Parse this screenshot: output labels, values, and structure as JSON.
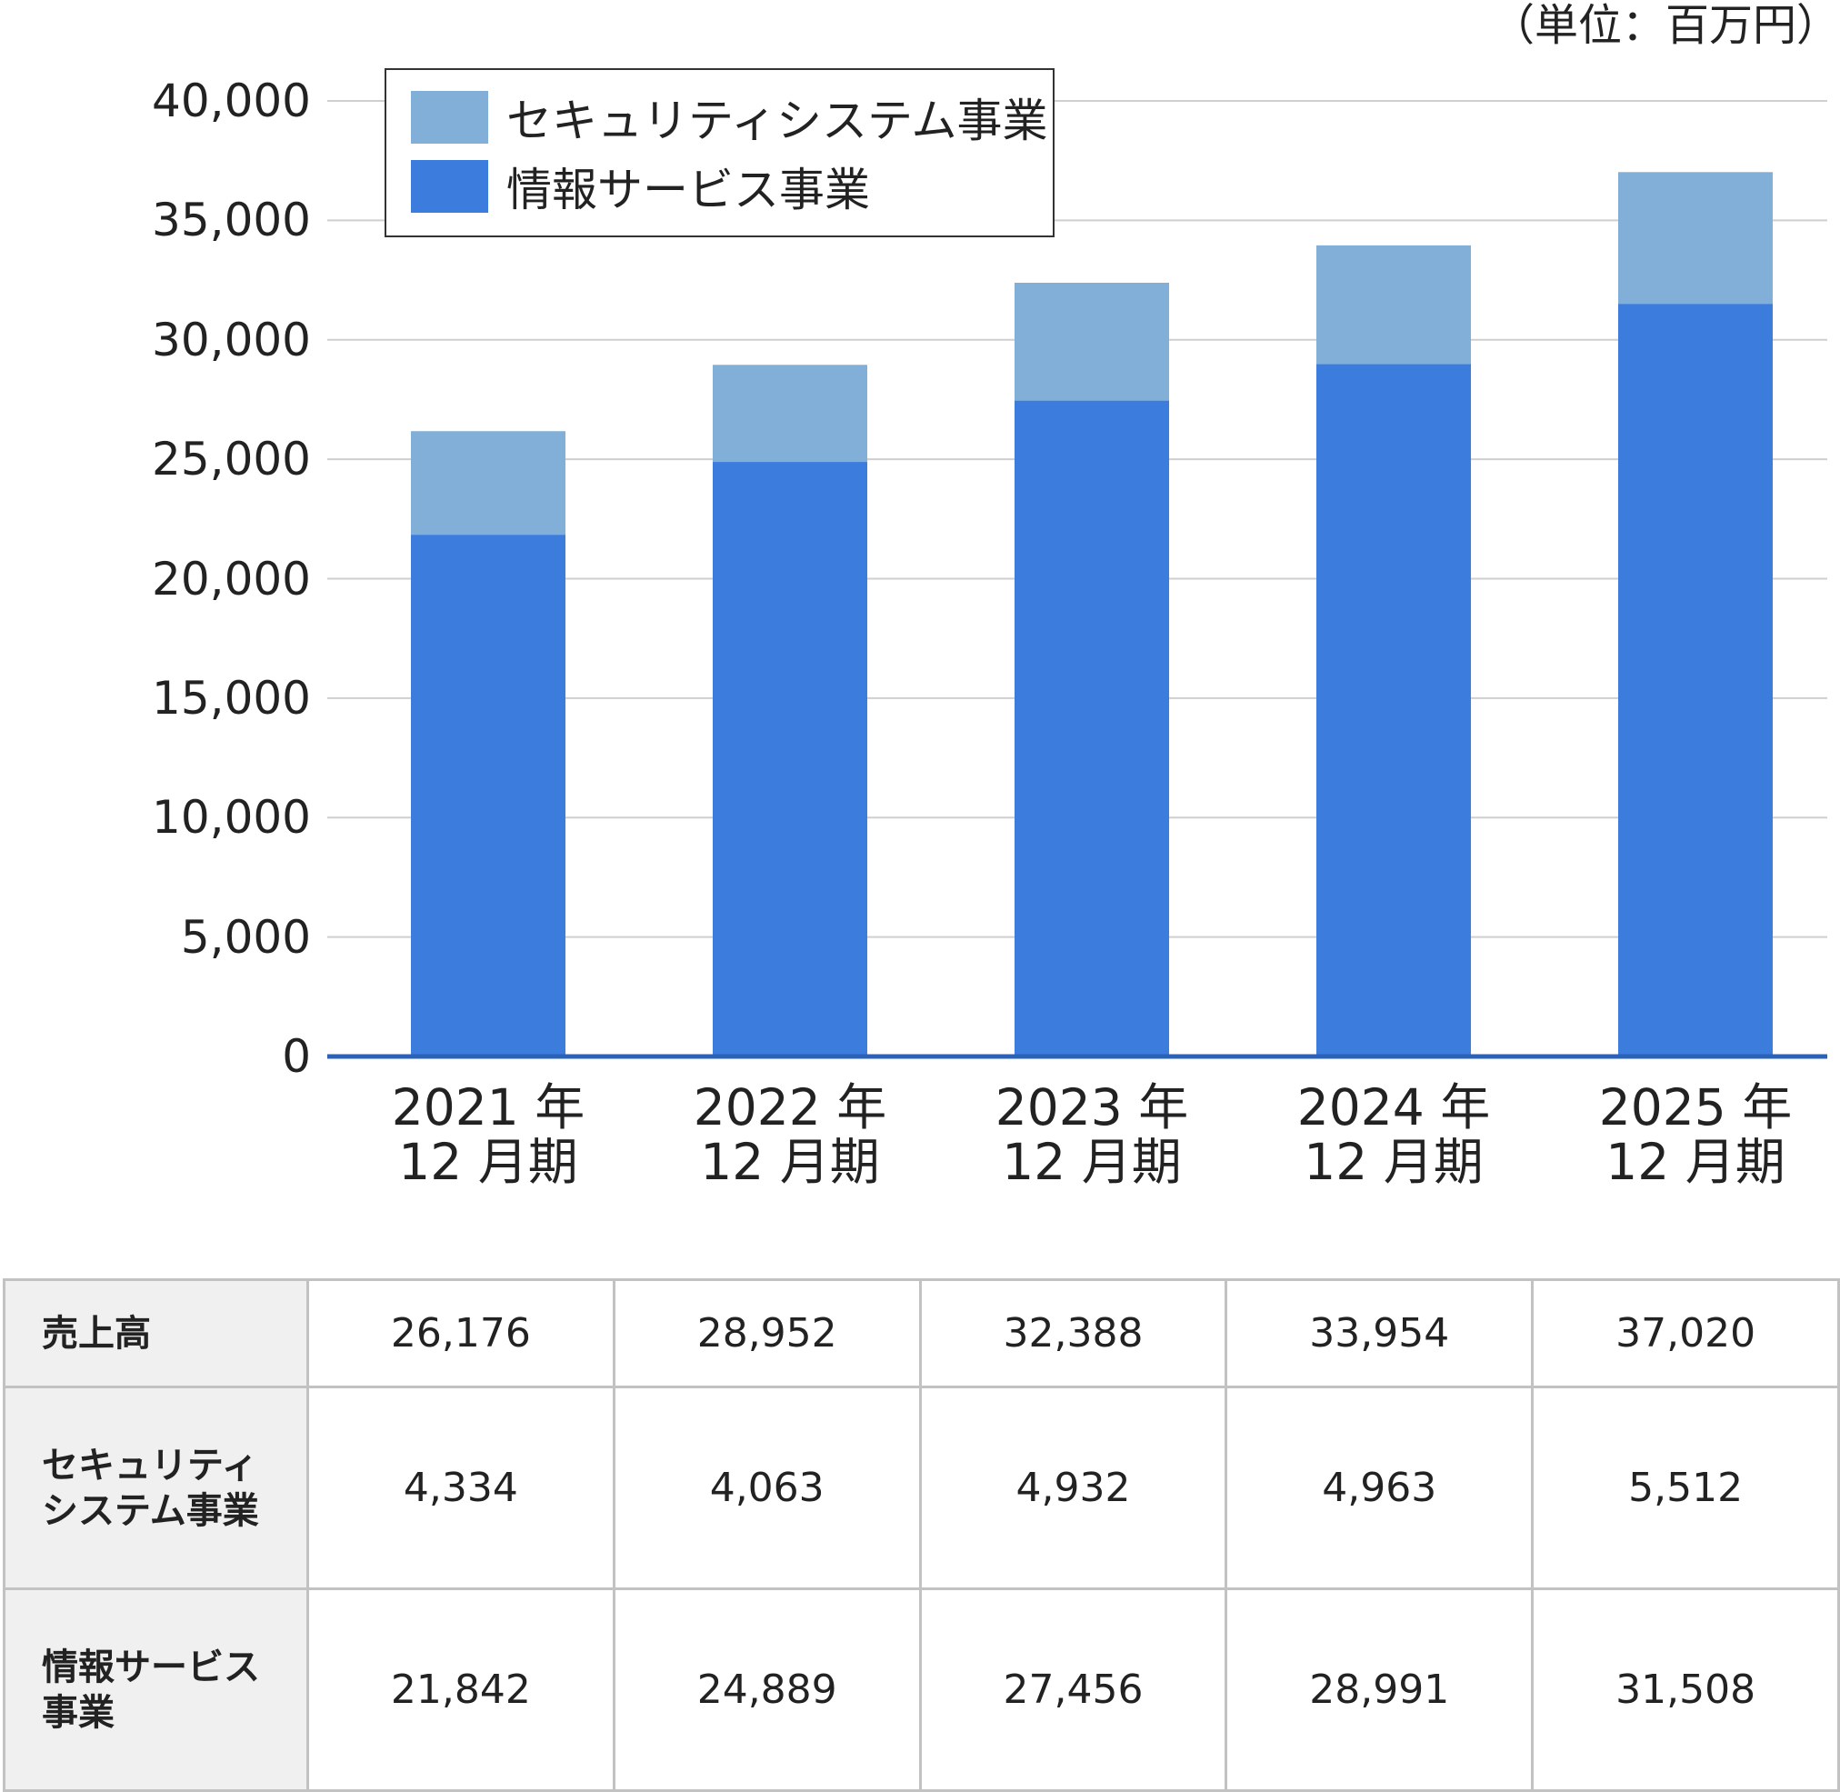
{
  "unit_label": "（単位：百万円）",
  "chart_data": {
    "type": "bar",
    "stacked": true,
    "categories": [
      [
        "2021 年",
        "12 月期"
      ],
      [
        "2022 年",
        "12 月期"
      ],
      [
        "2023 年",
        "12 月期"
      ],
      [
        "2024 年",
        "12 月期"
      ],
      [
        "2025 年",
        "12 月期"
      ]
    ],
    "series": [
      {
        "name": "情報サービス事業",
        "color": "#3c7cdc",
        "values": [
          21842,
          24889,
          27456,
          28991,
          31508
        ]
      },
      {
        "name": "セキュリティシステム事業",
        "color": "#82afd8",
        "values": [
          4334,
          4063,
          4932,
          4963,
          5512
        ]
      }
    ],
    "ylim": [
      0,
      40000
    ],
    "yticks": [
      "0",
      "5,000",
      "10,000",
      "15,000",
      "20,000",
      "25,000",
      "30,000",
      "35,000",
      "40,000"
    ],
    "grid": true,
    "legend": {
      "position": "top-left",
      "items": [
        "セキュリティシステム事業",
        "情報サービス事業"
      ]
    }
  },
  "table": {
    "rows": [
      {
        "header": [
          "売上高"
        ],
        "values": [
          "26,176",
          "28,952",
          "32,388",
          "33,954",
          "37,020"
        ]
      },
      {
        "header": [
          "セキュリティ",
          "システム事業"
        ],
        "values": [
          "4,334",
          "4,063",
          "4,932",
          "4,963",
          "5,512"
        ]
      },
      {
        "header": [
          "情報サービス",
          "事業"
        ],
        "values": [
          "21,842",
          "24,889",
          "27,456",
          "28,991",
          "31,508"
        ]
      }
    ]
  }
}
